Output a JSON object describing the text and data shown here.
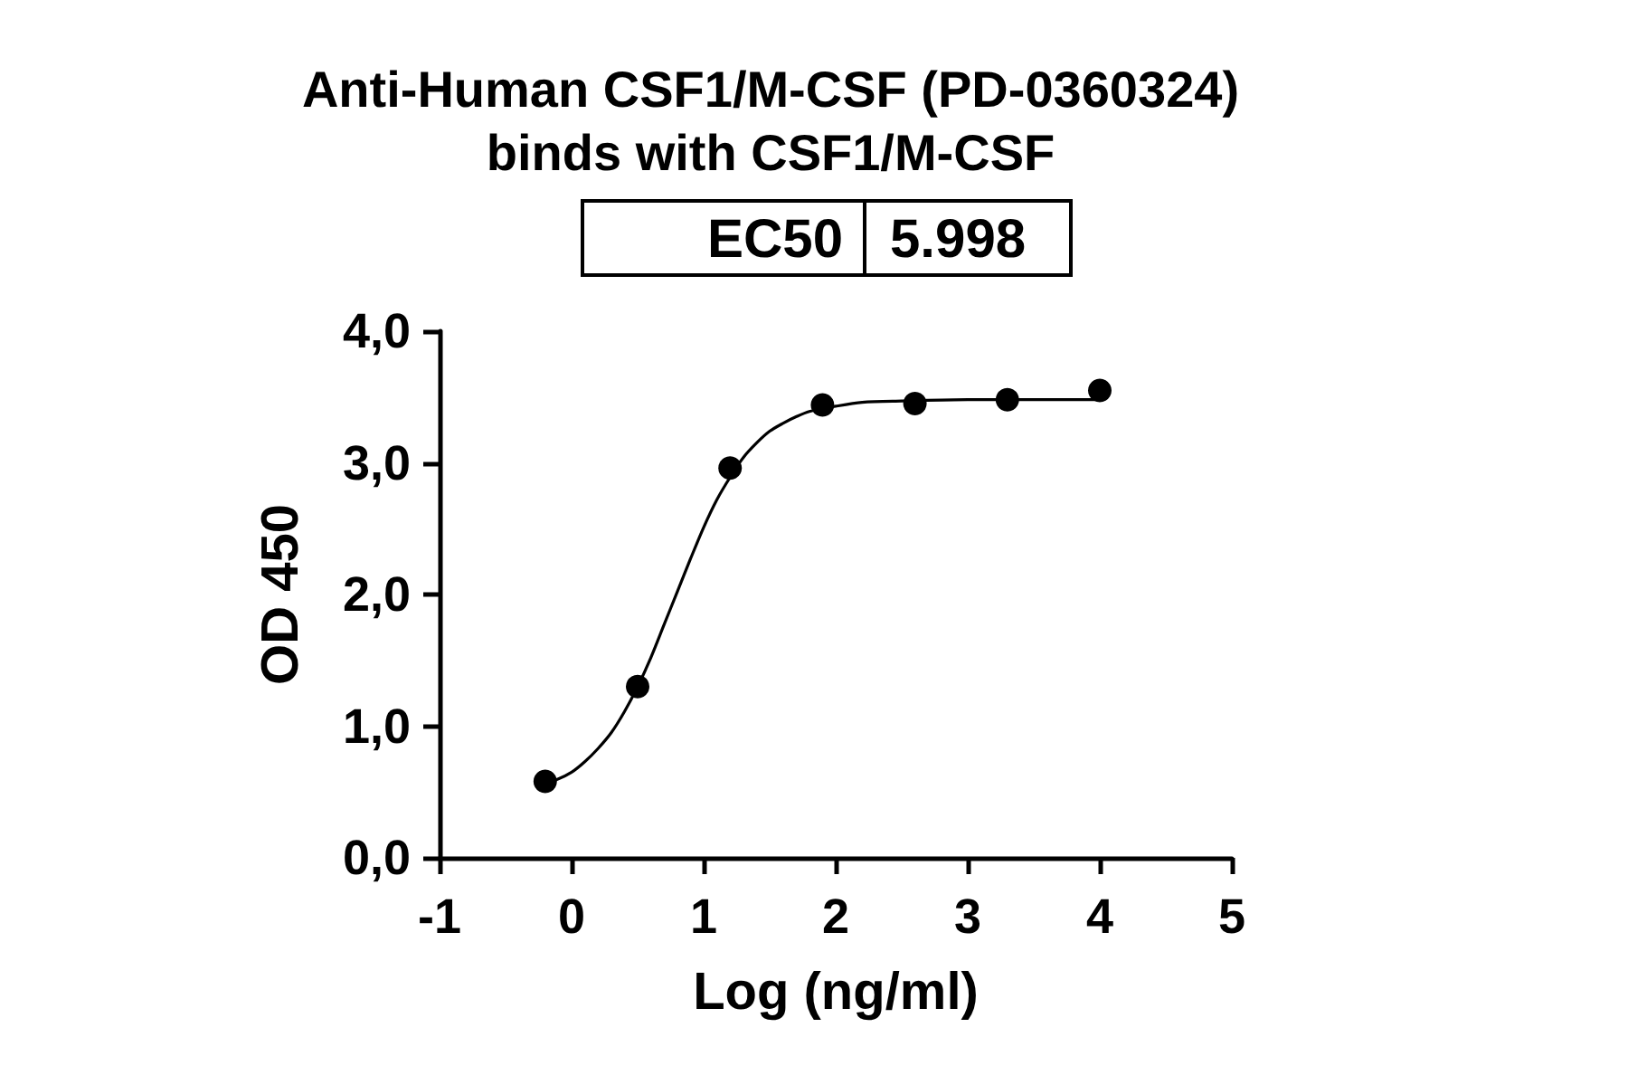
{
  "chart_data": {
    "type": "scatter",
    "title": "Anti-Human CSF1/M-CSF (PD-0360324)\nbinds with CSF1/M-CSF",
    "annotations": [
      "EC50",
      "5.998"
    ],
    "xlabel": "Log (ng/ml)",
    "ylabel": "OD 450",
    "xlim": [
      -1,
      5
    ],
    "xticks": [
      -1,
      0,
      1,
      2,
      3,
      4,
      5
    ],
    "ylim": [
      0,
      4
    ],
    "yticks": [
      {
        "value": 0,
        "label": "0,0"
      },
      {
        "value": 1,
        "label": "1,0"
      },
      {
        "value": 2,
        "label": "2,0"
      },
      {
        "value": 3,
        "label": "3,0"
      },
      {
        "value": 4,
        "label": "4,0"
      }
    ],
    "grid": false,
    "marker": "circle",
    "series": [
      {
        "type": "line",
        "color": "#000000",
        "line_style": "solid",
        "marker": "none",
        "x": [
          -0.2,
          -0.1,
          0.0,
          0.1,
          0.2,
          0.3,
          0.4,
          0.5,
          0.6,
          0.7,
          0.8,
          0.9,
          1.0,
          1.1,
          1.2,
          1.3,
          1.4,
          1.5,
          1.6,
          1.7,
          1.8,
          2.0,
          2.2,
          2.5,
          3.0,
          4.0
        ],
        "values": [
          0.57,
          0.6,
          0.65,
          0.73,
          0.83,
          0.95,
          1.11,
          1.3,
          1.52,
          1.77,
          2.02,
          2.27,
          2.51,
          2.72,
          2.89,
          3.04,
          3.15,
          3.24,
          3.3,
          3.35,
          3.39,
          3.43,
          3.46,
          3.47,
          3.48,
          3.48
        ]
      },
      {
        "color": "#000000",
        "x": [
          -0.2,
          0.5,
          1.2,
          1.9,
          2.6,
          3.3,
          4.0
        ],
        "values": [
          0.58,
          1.3,
          2.96,
          3.44,
          3.45,
          3.48,
          3.55
        ]
      }
    ]
  }
}
